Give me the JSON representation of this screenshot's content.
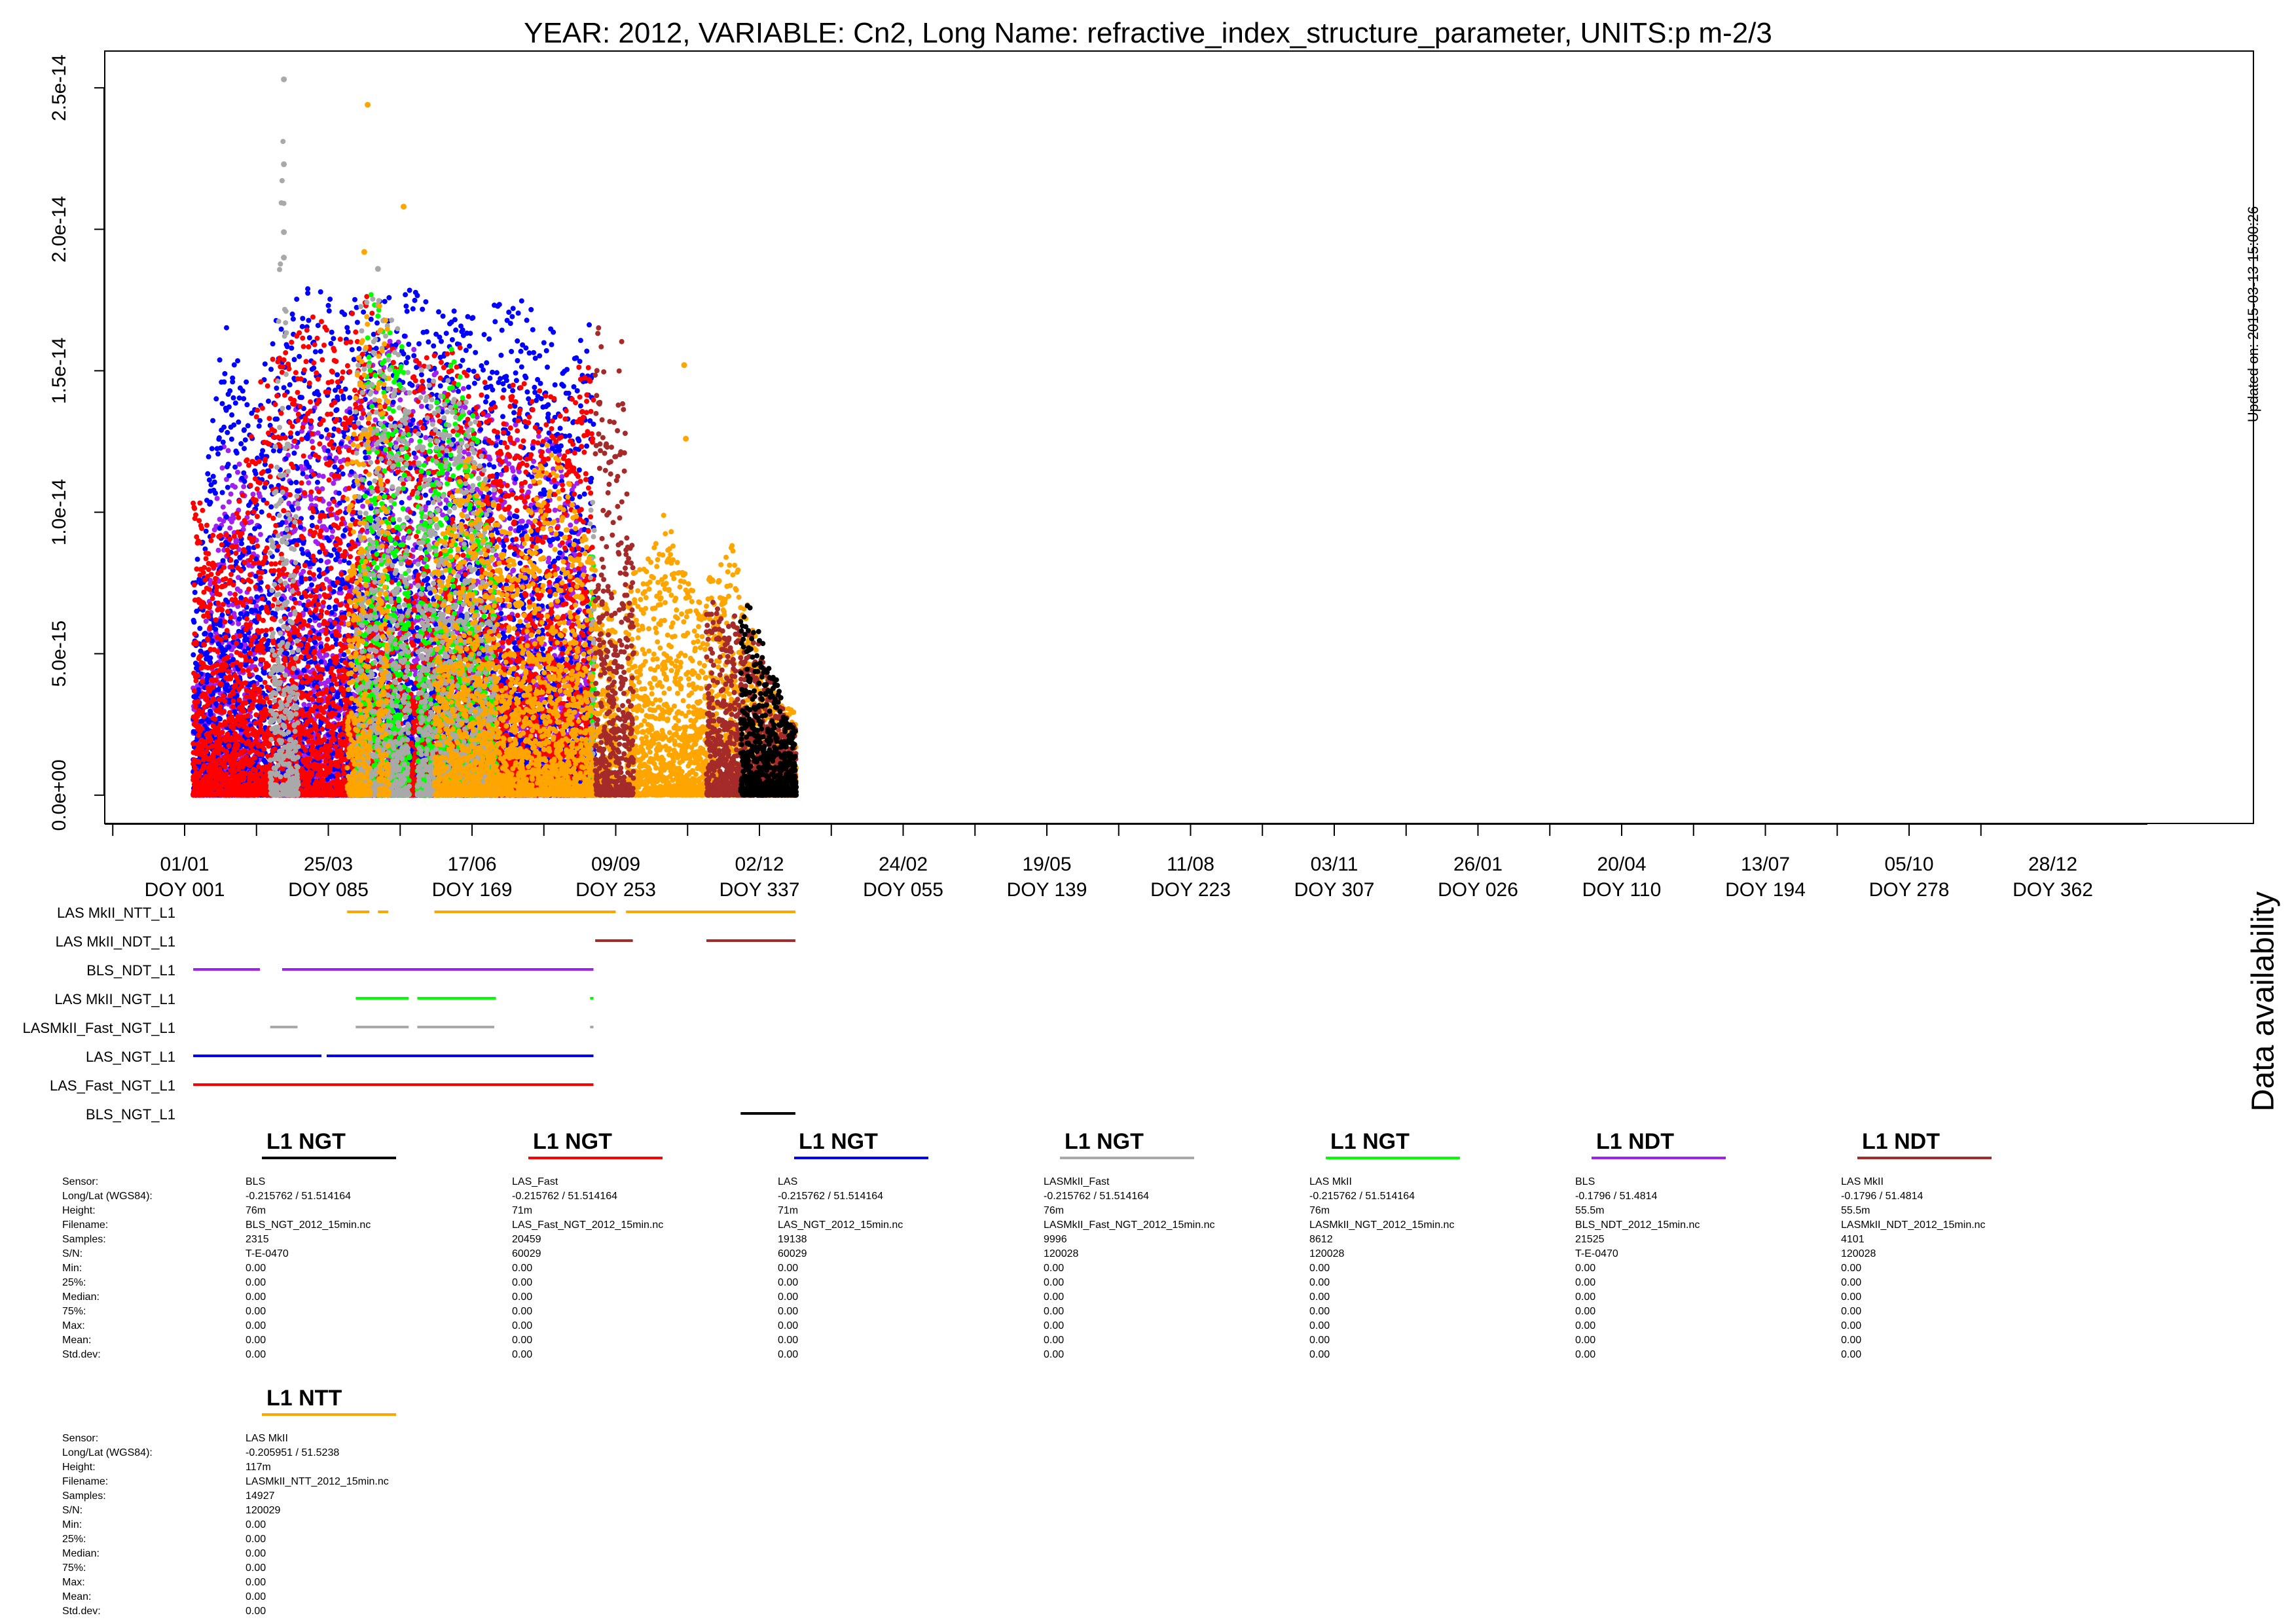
{
  "title": "YEAR: 2012, VARIABLE: Cn2, Long Name: refractive_index_structure_parameter, UNITS:p m-2/3",
  "updated": "Updated on: 2015-03-13 15:00:26",
  "availability_label": "Data availability",
  "colors": {
    "LAS MkII_NTT_L1": "#ffa500",
    "LAS MkII_NDT_L1": "#a52a2a",
    "BLS_NDT_L1": "#a020f0",
    "LAS MkII_NGT_L1": "#00ff00",
    "LASMkII_Fast_NGT_L1": "#a9a9a9",
    "LAS_NGT_L1": "#0000ff",
    "LAS_Fast_NGT_L1": "#ff0000",
    "BLS_NGT_L1": "#000000"
  },
  "chart_data": {
    "type": "scatter",
    "ylabel": "",
    "ylim": [
      -1e-15,
      2.63e-14
    ],
    "yticks": [
      "0.0e+00",
      "5.0e-15",
      "1.0e-14",
      "1.5e-14",
      "2.0e-14",
      "2.5e-14"
    ],
    "xlabels": [
      {
        "date": "01/01",
        "doy": "DOY 001"
      },
      {
        "date": "25/03",
        "doy": "DOY 085"
      },
      {
        "date": "17/06",
        "doy": "DOY 169"
      },
      {
        "date": "09/09",
        "doy": "DOY 253"
      },
      {
        "date": "02/12",
        "doy": "DOY 337"
      },
      {
        "date": "24/02",
        "doy": "DOY 055"
      },
      {
        "date": "19/05",
        "doy": "DOY 139"
      },
      {
        "date": "11/08",
        "doy": "DOY 223"
      },
      {
        "date": "03/11",
        "doy": "DOY 307"
      },
      {
        "date": "26/01",
        "doy": "DOY 026"
      },
      {
        "date": "20/04",
        "doy": "DOY 110"
      },
      {
        "date": "13/07",
        "doy": "DOY 194"
      },
      {
        "date": "05/10",
        "doy": "DOY 278"
      },
      {
        "date": "28/12",
        "doy": "DOY 362"
      }
    ],
    "series": [
      {
        "name": "BLS_NDT_L1",
        "color": "#a020f0",
        "segments": [
          [
            5,
            44
          ],
          [
            57,
            239
          ]
        ],
        "peaks": [
          [
            5,
            4e-15
          ],
          [
            10,
            5e-15
          ],
          [
            18,
            1e-14
          ],
          [
            24,
            1.3e-14
          ],
          [
            30,
            1.2e-14
          ],
          [
            40,
            1.1e-14
          ],
          [
            60,
            1.25e-14
          ],
          [
            70,
            1.5e-14
          ],
          [
            80,
            1.3e-14
          ],
          [
            100,
            1.4e-14
          ],
          [
            115,
            1.6e-14
          ],
          [
            128,
            1.65e-14
          ],
          [
            140,
            1.5e-14
          ],
          [
            155,
            1.5e-14
          ],
          [
            170,
            1.4e-14
          ],
          [
            185,
            1.35e-14
          ],
          [
            200,
            1.3e-14
          ],
          [
            215,
            1.25e-14
          ],
          [
            230,
            1.1e-14
          ],
          [
            239,
            6e-15
          ]
        ]
      },
      {
        "name": "LAS_NGT_L1",
        "color": "#0000ff",
        "segments": [
          [
            5,
            80
          ],
          [
            83,
            239
          ]
        ],
        "peaks": [
          [
            6,
            7.5e-15
          ],
          [
            22,
            1.7e-14
          ],
          [
            40,
            1.4e-14
          ],
          [
            52,
            1.7e-14
          ],
          [
            60,
            1.75e-14
          ],
          [
            72,
            1.8e-14
          ],
          [
            90,
            1.75e-14
          ],
          [
            100,
            1.8e-14
          ],
          [
            115,
            1.75e-14
          ],
          [
            125,
            1.8e-14
          ],
          [
            140,
            1.8e-14
          ],
          [
            160,
            1.75e-14
          ],
          [
            175,
            1.7e-14
          ],
          [
            190,
            1.8e-14
          ],
          [
            205,
            1.7e-14
          ],
          [
            220,
            1.65e-14
          ],
          [
            235,
            1.7e-14
          ]
        ]
      },
      {
        "name": "LAS_Fast_NGT_L1",
        "color": "#ff0000",
        "segments": [
          [
            5,
            239
          ]
        ],
        "peaks": [
          [
            5,
            1.1e-14
          ],
          [
            18,
            9e-15
          ],
          [
            30,
            1e-14
          ],
          [
            45,
            1.5e-14
          ],
          [
            60,
            1.6e-14
          ],
          [
            75,
            1.7e-14
          ],
          [
            92,
            1.65e-14
          ],
          [
            108,
            1.8e-14
          ],
          [
            122,
            1.6e-14
          ],
          [
            140,
            1.55e-14
          ],
          [
            160,
            1.6e-14
          ],
          [
            180,
            1.45e-14
          ],
          [
            200,
            1.5e-14
          ],
          [
            220,
            1.4e-14
          ],
          [
            237,
            1.6e-14
          ]
        ]
      },
      {
        "name": "LAS MkII_NGT_L1",
        "color": "#00ff00",
        "segments": [
          [
            100,
            131
          ],
          [
            136,
            182
          ],
          [
            237,
            239
          ]
        ],
        "peaks": [
          [
            100,
            5e-15
          ],
          [
            108,
            1.8e-14
          ],
          [
            115,
            1.7e-14
          ],
          [
            125,
            1.65e-14
          ],
          [
            140,
            1.2e-14
          ],
          [
            155,
            1.6e-14
          ],
          [
            168,
            1.4e-14
          ],
          [
            180,
            9e-15
          ]
        ]
      },
      {
        "name": "LASMkII_Fast_NGT_L1",
        "color": "#a9a9a9",
        "segments": [
          [
            50,
            66
          ],
          [
            100,
            131
          ],
          [
            136,
            181
          ],
          [
            237,
            239
          ]
        ],
        "peaks": [
          [
            52,
            1e-14
          ],
          [
            58,
            2.5e-14
          ],
          [
            62,
            1e-14
          ],
          [
            106,
            1.8e-14
          ],
          [
            112,
            1.85e-14
          ],
          [
            120,
            1.7e-14
          ],
          [
            145,
            1.5e-14
          ],
          [
            165,
            1.5e-14
          ],
          [
            178,
            1.1e-14
          ]
        ],
        "outliers": [
          [
            58,
            2.53e-14
          ],
          [
            58,
            2.23e-14
          ],
          [
            58,
            1.99e-14
          ],
          [
            58,
            1.9e-14
          ],
          [
            113,
            1.86e-14
          ]
        ]
      },
      {
        "name": "LAS MkII_NTT_L1",
        "color": "#ffa500",
        "segments": [
          [
            95,
            108
          ],
          [
            113,
            119
          ],
          [
            146,
            252
          ],
          [
            258,
            357
          ]
        ],
        "peaks": [
          [
            98,
            1.3e-14
          ],
          [
            105,
            1.8e-14
          ],
          [
            115,
            1.8e-14
          ],
          [
            150,
            9.5e-15
          ],
          [
            165,
            1.2e-14
          ],
          [
            180,
            1.1e-14
          ],
          [
            195,
            9e-15
          ],
          [
            210,
            1.3e-14
          ],
          [
            225,
            1.1e-14
          ],
          [
            245,
            7e-15
          ],
          [
            265,
            8e-15
          ],
          [
            280,
            1e-14
          ],
          [
            300,
            7e-15
          ],
          [
            320,
            9e-15
          ],
          [
            340,
            4e-15
          ],
          [
            355,
            3e-15
          ]
        ],
        "outliers": [
          [
            107,
            2.44e-14
          ],
          [
            128,
            2.08e-14
          ],
          [
            105,
            1.92e-14
          ],
          [
            292,
            1.52e-14
          ],
          [
            293,
            1.26e-14
          ]
        ]
      },
      {
        "name": "LAS MkII_NDT_L1",
        "color": "#a52a2a",
        "segments": [
          [
            240,
            262
          ],
          [
            305,
            357
          ]
        ],
        "peaks": [
          [
            240,
            1.85e-14
          ],
          [
            245,
            1.5e-14
          ],
          [
            250,
            1.3e-14
          ],
          [
            255,
            1.7e-14
          ],
          [
            260,
            9e-15
          ],
          [
            310,
            7e-15
          ],
          [
            320,
            6.5e-15
          ],
          [
            330,
            5.8e-15
          ],
          [
            340,
            5e-15
          ],
          [
            350,
            3e-15
          ],
          [
            356,
            2.5e-15
          ]
        ]
      },
      {
        "name": "BLS_NGT_L1",
        "color": "#000000",
        "segments": [
          [
            325,
            357
          ]
        ],
        "peaks": [
          [
            330,
            6.8e-15
          ],
          [
            345,
            4.2e-15
          ],
          [
            355,
            2.5e-15
          ]
        ]
      }
    ]
  },
  "availability_rows": [
    "LAS MkII_NTT_L1",
    "LAS MkII_NDT_L1",
    "BLS_NDT_L1",
    "LAS MkII_NGT_L1",
    "LASMkII_Fast_NGT_L1",
    "LAS_NGT_L1",
    "LAS_Fast_NGT_L1",
    "BLS_NGT_L1"
  ],
  "stat_labels": [
    "Sensor:",
    "Long/Lat (WGS84):",
    "Height:",
    "Filename:",
    "Samples:",
    "S/N:",
    "Min:",
    "25%:",
    "Median:",
    "75%:",
    "Max:",
    "Mean:",
    "Std.dev:"
  ],
  "sections": [
    {
      "title": "L1 NGT",
      "color": "#000000",
      "values": [
        "BLS",
        " -0.215762 / 51.514164",
        "76m",
        "BLS_NGT_2012_15min.nc",
        "2315",
        "T-E-0470",
        "0.00",
        "0.00",
        "0.00",
        "0.00",
        "0.00",
        "0.00",
        "0.00"
      ]
    },
    {
      "title": "L1 NGT",
      "color": "#ff0000",
      "values": [
        "LAS_Fast",
        " -0.215762 / 51.514164",
        "71m",
        "LAS_Fast_NGT_2012_15min.nc",
        "20459",
        "60029",
        "0.00",
        "0.00",
        "0.00",
        "0.00",
        "0.00",
        "0.00",
        "0.00"
      ]
    },
    {
      "title": "L1 NGT",
      "color": "#0000ff",
      "values": [
        "LAS",
        " -0.215762 / 51.514164",
        "71m",
        "LAS_NGT_2012_15min.nc",
        "19138",
        "60029",
        "0.00",
        "0.00",
        "0.00",
        "0.00",
        "0.00",
        "0.00",
        "0.00"
      ]
    },
    {
      "title": "L1 NGT",
      "color": "#a9a9a9",
      "values": [
        "LASMkII_Fast",
        "-0.215762 / 51.514164",
        "76m",
        "LASMkII_Fast_NGT_2012_15min.nc",
        "9996",
        "120028",
        "0.00",
        "0.00",
        "0.00",
        "0.00",
        "0.00",
        "0.00",
        "0.00"
      ]
    },
    {
      "title": "L1 NGT",
      "color": "#00ff00",
      "values": [
        "LAS MkII",
        " -0.215762 / 51.514164",
        "76m",
        "LASMkII_NGT_2012_15min.nc",
        "8612",
        "120028",
        "0.00",
        "0.00",
        "0.00",
        "0.00",
        "0.00",
        "0.00",
        "0.00"
      ]
    },
    {
      "title": "L1 NDT",
      "color": "#a020f0",
      "values": [
        "BLS",
        " -0.1796 / 51.4814",
        "55.5m",
        "BLS_NDT_2012_15min.nc",
        "21525",
        "T-E-0470",
        "0.00",
        "0.00",
        "0.00",
        "0.00",
        "0.00",
        "0.00",
        "0.00"
      ]
    },
    {
      "title": "L1 NDT",
      "color": "#a52a2a",
      "values": [
        "LAS MkII",
        " -0.1796 / 51.4814",
        "55.5m",
        "LASMkII_NDT_2012_15min.nc",
        "4101",
        "120028",
        "0.00",
        "0.00",
        "0.00",
        "0.00",
        "0.00",
        "0.00",
        "0.00"
      ]
    },
    {
      "title": "L1 NTT",
      "color": "#ffa500",
      "values": [
        "LAS MkII",
        " -0.205951 / 51.5238",
        "117m",
        "LASMkII_NTT_2012_15min.nc",
        "14927",
        "120029",
        "0.00",
        "0.00",
        "0.00",
        "0.00",
        "0.00",
        "0.00",
        "0.00"
      ]
    }
  ]
}
